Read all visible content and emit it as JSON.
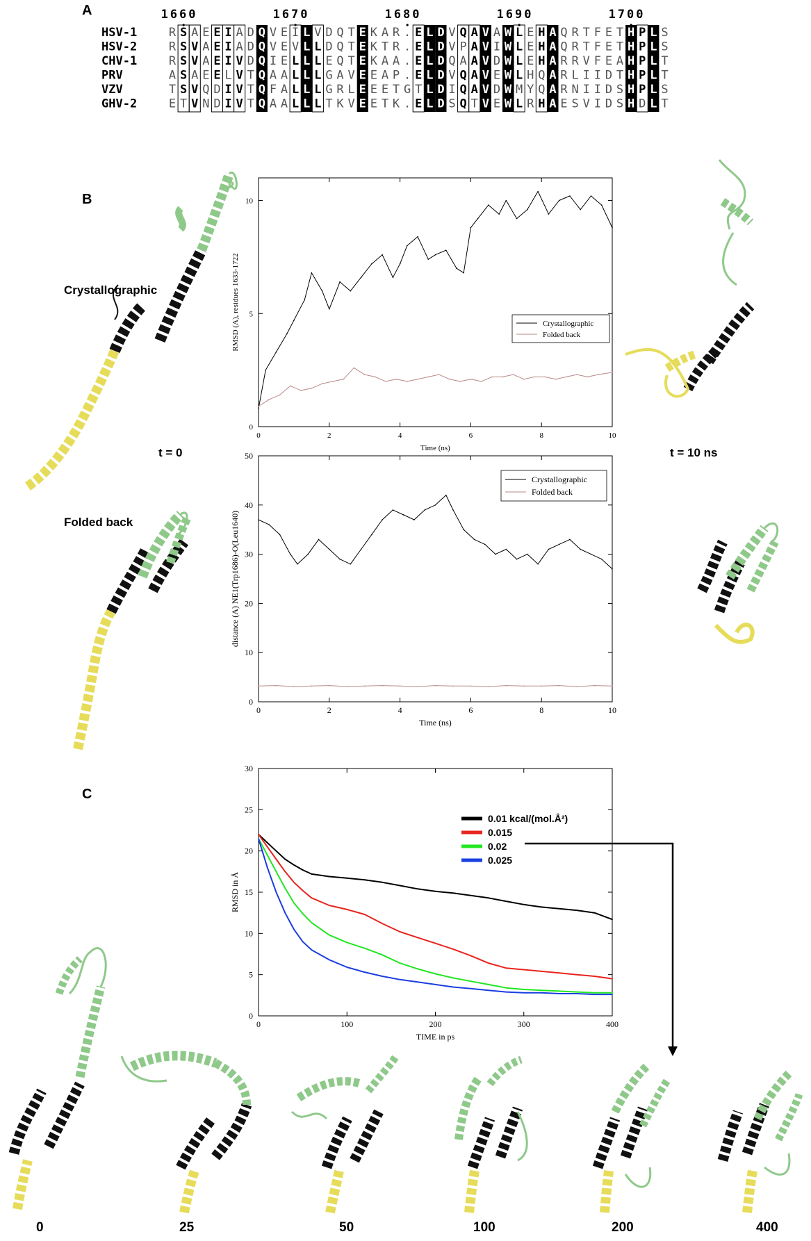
{
  "panels": {
    "a": "A",
    "b": "B",
    "c": "C"
  },
  "alignment": {
    "positions": [
      "1660",
      "1670",
      "1680",
      "1690",
      "1700"
    ],
    "rows": [
      {
        "name": "HSV-1",
        "seq": "RSAEEIADQVEILVDQTEKAR.ELDVQAVAWLEHAQRTFETHPLS"
      },
      {
        "name": "HSV-2",
        "seq": "RSVAEIADQVEVLLDQTEKTR.ELDVPAVIWLEHAQRTFETHPLS"
      },
      {
        "name": "CHV-1",
        "seq": "RSVAEIVDQIELLLEQTEKAA.ELDQAAVDWLEHARRVFEAHPLT"
      },
      {
        "name": "PRV",
        "seq": "ASAEELVTQAALLLGAVEEAP.ELDVQAVEWLHQARLIIDTHPLT"
      },
      {
        "name": "VZV",
        "seq": "TSVQDIVTQFALLLGRLEEETGTLDIQAVDWMYQARNIIDSHPLS"
      },
      {
        "name": "GHV-2",
        "seq": "ETVNDIVTQAALLLTKVEETK.ELDSQTVEWLRHAESVIDSHDLT"
      }
    ]
  },
  "panel_b": {
    "crystal_label": "Crystallographic",
    "folded_label": "Folded back",
    "t0_label": "t = 0",
    "t10_label": "t = 10 ns"
  },
  "panel_c": {
    "time_labels": [
      "0",
      "25",
      "50",
      "100",
      "200",
      "400"
    ]
  },
  "colors": {
    "crystallographic": "#000000",
    "folded_back": "#b88a86",
    "c_0_01": "#000000",
    "c_0_015": "#e8241e",
    "c_0_02": "#22e622",
    "c_0_025": "#1a3ee0",
    "helix_green": "#9fd19a",
    "helix_yellow": "#f4ec7a"
  },
  "chart_data": [
    {
      "type": "line",
      "xlabel": "Time (ns)",
      "ylabel": "RMSD (A), residues 1633-1722",
      "xlim": [
        0,
        10
      ],
      "ylim": [
        0,
        11
      ],
      "xticks": [
        0,
        2,
        4,
        6,
        8,
        10
      ],
      "yticks": [
        0,
        5,
        10
      ],
      "legend": "right",
      "series": [
        {
          "name": "Crystallographic",
          "x": [
            0,
            0.2,
            0.5,
            0.8,
            1,
            1.3,
            1.5,
            1.8,
            2,
            2.3,
            2.6,
            2.9,
            3.2,
            3.5,
            3.8,
            4,
            4.2,
            4.5,
            4.8,
            5,
            5.3,
            5.6,
            5.8,
            6,
            6.2,
            6.5,
            6.8,
            7,
            7.3,
            7.6,
            7.9,
            8.2,
            8.5,
            8.8,
            9.1,
            9.4,
            9.7,
            10
          ],
          "y": [
            0.8,
            2.5,
            3.3,
            4.1,
            4.7,
            5.6,
            6.8,
            6.0,
            5.2,
            6.4,
            6.0,
            6.6,
            7.2,
            7.6,
            6.6,
            7.2,
            8.0,
            8.4,
            7.4,
            7.6,
            7.8,
            7.0,
            6.8,
            8.8,
            9.2,
            9.8,
            9.4,
            10.0,
            9.2,
            9.6,
            10.4,
            9.4,
            10.0,
            10.2,
            9.6,
            10.2,
            9.8,
            8.8
          ]
        },
        {
          "name": "Folded back",
          "x": [
            0,
            0.3,
            0.6,
            0.9,
            1.2,
            1.5,
            1.8,
            2.1,
            2.4,
            2.7,
            3,
            3.3,
            3.6,
            3.9,
            4.2,
            4.5,
            4.8,
            5.1,
            5.4,
            5.7,
            6,
            6.3,
            6.6,
            6.9,
            7.2,
            7.5,
            7.8,
            8.1,
            8.4,
            8.7,
            9,
            9.3,
            9.6,
            10
          ],
          "y": [
            0.9,
            1.2,
            1.4,
            1.8,
            1.6,
            1.7,
            1.9,
            2.0,
            2.1,
            2.6,
            2.3,
            2.2,
            2.0,
            2.1,
            2.0,
            2.1,
            2.2,
            2.3,
            2.1,
            2.0,
            2.1,
            2.0,
            2.2,
            2.2,
            2.3,
            2.1,
            2.2,
            2.2,
            2.1,
            2.2,
            2.3,
            2.2,
            2.3,
            2.4
          ]
        }
      ]
    },
    {
      "type": "line",
      "xlabel": "Time (ns)",
      "ylabel": "distance (A) NE1(Trp1686)-O(Leu1640)",
      "xlim": [
        0,
        10
      ],
      "ylim": [
        0,
        50
      ],
      "xticks": [
        0,
        2,
        4,
        6,
        8,
        10
      ],
      "yticks": [
        0,
        10,
        20,
        30,
        40,
        50
      ],
      "legend": "top-right",
      "series": [
        {
          "name": "Crystallographic",
          "x": [
            0,
            0.3,
            0.6,
            0.9,
            1.1,
            1.4,
            1.7,
            2,
            2.3,
            2.6,
            2.9,
            3.2,
            3.5,
            3.8,
            4.1,
            4.4,
            4.7,
            5,
            5.3,
            5.5,
            5.8,
            6.1,
            6.4,
            6.7,
            7,
            7.3,
            7.6,
            7.9,
            8.2,
            8.5,
            8.8,
            9.1,
            9.4,
            9.7,
            10
          ],
          "y": [
            37,
            36,
            34,
            30,
            28,
            30,
            33,
            31,
            29,
            28,
            31,
            34,
            37,
            39,
            38,
            37,
            39,
            40,
            42,
            39,
            35,
            33,
            32,
            30,
            31,
            29,
            30,
            28,
            31,
            32,
            33,
            31,
            30,
            29,
            27
          ]
        },
        {
          "name": "Folded back",
          "x": [
            0,
            0.5,
            1,
            1.5,
            2,
            2.5,
            3,
            3.5,
            4,
            4.5,
            5,
            5.5,
            6,
            6.5,
            7,
            7.5,
            8,
            8.5,
            9,
            9.5,
            10
          ],
          "y": [
            3.2,
            3.3,
            3.1,
            3.2,
            3.3,
            3.1,
            3.2,
            3.3,
            3.2,
            3.1,
            3.3,
            3.2,
            3.2,
            3.1,
            3.3,
            3.2,
            3.2,
            3.3,
            3.1,
            3.3,
            3.2
          ]
        }
      ]
    },
    {
      "type": "line",
      "xlabel": "TIME in ps",
      "ylabel": "RMSD in Å",
      "xlim": [
        0,
        400
      ],
      "ylim": [
        0,
        30
      ],
      "xticks": [
        0,
        100,
        200,
        300,
        400
      ],
      "yticks": [
        0,
        5,
        10,
        15,
        20,
        25,
        30
      ],
      "legend": "top-right",
      "series": [
        {
          "name": "0.01 kcal/(mol.Å²)",
          "x": [
            0,
            10,
            20,
            30,
            40,
            50,
            60,
            80,
            100,
            120,
            140,
            160,
            180,
            200,
            220,
            240,
            260,
            280,
            300,
            320,
            340,
            360,
            380,
            400
          ],
          "y": [
            22,
            21,
            20,
            19,
            18.3,
            17.7,
            17.2,
            16.9,
            16.7,
            16.5,
            16.2,
            15.8,
            15.4,
            15.1,
            14.9,
            14.6,
            14.3,
            13.9,
            13.5,
            13.2,
            13.0,
            12.8,
            12.5,
            11.7
          ]
        },
        {
          "name": "0.015",
          "x": [
            0,
            10,
            20,
            30,
            40,
            50,
            60,
            80,
            100,
            120,
            140,
            160,
            180,
            200,
            220,
            240,
            260,
            280,
            300,
            320,
            340,
            360,
            380,
            400
          ],
          "y": [
            22,
            20.5,
            19,
            17.5,
            16.2,
            15.2,
            14.3,
            13.4,
            12.9,
            12.3,
            11.2,
            10.2,
            9.5,
            8.8,
            8.1,
            7.3,
            6.4,
            5.8,
            5.6,
            5.4,
            5.2,
            5.0,
            4.8,
            4.5
          ]
        },
        {
          "name": "0.02",
          "x": [
            0,
            10,
            20,
            30,
            40,
            50,
            60,
            80,
            100,
            120,
            140,
            160,
            180,
            200,
            220,
            240,
            260,
            280,
            300,
            320,
            340,
            360,
            380,
            400
          ],
          "y": [
            21.5,
            19.5,
            17.5,
            15.5,
            13.7,
            12.4,
            11.3,
            9.8,
            8.9,
            8.2,
            7.4,
            6.4,
            5.7,
            5.1,
            4.6,
            4.2,
            3.8,
            3.4,
            3.2,
            3.1,
            3.0,
            2.9,
            2.8,
            2.8
          ]
        },
        {
          "name": "0.025",
          "x": [
            0,
            10,
            20,
            30,
            40,
            50,
            60,
            80,
            100,
            120,
            140,
            160,
            180,
            200,
            220,
            240,
            260,
            280,
            300,
            320,
            340,
            360,
            380,
            400
          ],
          "y": [
            21.5,
            18,
            15,
            12.5,
            10.5,
            9.0,
            8.0,
            6.8,
            5.9,
            5.3,
            4.8,
            4.4,
            4.1,
            3.8,
            3.5,
            3.3,
            3.1,
            2.9,
            2.8,
            2.8,
            2.7,
            2.7,
            2.6,
            2.6
          ]
        }
      ]
    }
  ]
}
